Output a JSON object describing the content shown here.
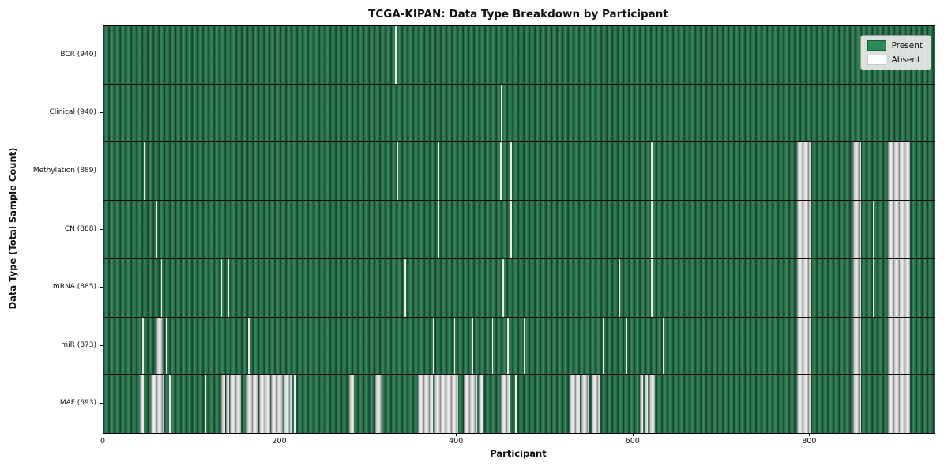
{
  "chart_data": {
    "type": "heatmap",
    "title": "TCGA-KIPAN: Data Type Breakdown by Participant",
    "xlabel": "Participant",
    "ylabel": "Data Type (Total Sample Count)",
    "x_range": [
      0,
      941
    ],
    "x_ticks": [
      0,
      200,
      400,
      600,
      800
    ],
    "grid": false,
    "legend_position": "upper right",
    "legend": [
      {
        "label": "Present",
        "color": "#2e8b57",
        "border": "#1d5c39"
      },
      {
        "label": "Absent",
        "color": "#ffffff",
        "border": "#c8c8c8"
      }
    ],
    "cell_states": {
      "present": "green striped bar",
      "absent": "white/gray striped bar"
    },
    "rows": [
      {
        "label": "BCR (940)",
        "data_type": "BCR",
        "total_samples": 940,
        "absent_ranges": [
          [
            330,
            330
          ]
        ]
      },
      {
        "label": "Clinical (940)",
        "data_type": "Clinical",
        "total_samples": 940,
        "absent_ranges": [
          [
            450,
            450
          ]
        ]
      },
      {
        "label": "Methylation (889)",
        "data_type": "Methylation",
        "total_samples": 889,
        "absent_ranges": [
          [
            46,
            46
          ],
          [
            332,
            332
          ],
          [
            379,
            379
          ],
          [
            449,
            449
          ],
          [
            461,
            461
          ],
          [
            620,
            620
          ],
          [
            785,
            800
          ],
          [
            849,
            857
          ],
          [
            888,
            912
          ]
        ]
      },
      {
        "label": "CN (888)",
        "data_type": "CN",
        "total_samples": 888,
        "absent_ranges": [
          [
            59,
            59
          ],
          [
            379,
            379
          ],
          [
            461,
            461
          ],
          [
            620,
            620
          ],
          [
            785,
            800
          ],
          [
            849,
            857
          ],
          [
            871,
            871
          ],
          [
            888,
            912
          ]
        ]
      },
      {
        "label": "mRNA (885)",
        "data_type": "mRNA",
        "total_samples": 885,
        "absent_ranges": [
          [
            65,
            65
          ],
          [
            133,
            133
          ],
          [
            141,
            141
          ],
          [
            341,
            341
          ],
          [
            452,
            452
          ],
          [
            584,
            584
          ],
          [
            620,
            620
          ],
          [
            785,
            800
          ],
          [
            849,
            857
          ],
          [
            871,
            871
          ],
          [
            888,
            912
          ]
        ]
      },
      {
        "label": "miR (873)",
        "data_type": "miR",
        "total_samples": 873,
        "absent_ranges": [
          [
            44,
            44
          ],
          [
            60,
            66
          ],
          [
            71,
            71
          ],
          [
            164,
            164
          ],
          [
            373,
            373
          ],
          [
            397,
            397
          ],
          [
            417,
            417
          ],
          [
            440,
            440
          ],
          [
            457,
            457
          ],
          [
            476,
            476
          ],
          [
            565,
            565
          ],
          [
            592,
            592
          ],
          [
            633,
            633
          ],
          [
            785,
            800
          ],
          [
            849,
            857
          ],
          [
            888,
            912
          ]
        ]
      },
      {
        "label": "MAF (693)",
        "data_type": "MAF",
        "total_samples": 693,
        "absent_ranges": [
          [
            41,
            45
          ],
          [
            54,
            68
          ],
          [
            74,
            75
          ],
          [
            115,
            115
          ],
          [
            133,
            137
          ],
          [
            139,
            141
          ],
          [
            143,
            155
          ],
          [
            162,
            173
          ],
          [
            176,
            188
          ],
          [
            190,
            202
          ],
          [
            204,
            213
          ],
          [
            216,
            217
          ],
          [
            278,
            283
          ],
          [
            308,
            314
          ],
          [
            356,
            372
          ],
          [
            375,
            401
          ],
          [
            408,
            422
          ],
          [
            425,
            429
          ],
          [
            450,
            459
          ],
          [
            466,
            467
          ],
          [
            528,
            538
          ],
          [
            541,
            549
          ],
          [
            553,
            562
          ],
          [
            607,
            610
          ],
          [
            613,
            615
          ],
          [
            618,
            623
          ],
          [
            785,
            800
          ],
          [
            849,
            857
          ],
          [
            888,
            912
          ]
        ]
      }
    ],
    "colors": {
      "present_fill": "#2f7a54",
      "present_edge": "#17452e",
      "absent_fill": "#e2e2e2",
      "absent_edge": "#8e8e8e",
      "row_separator": "#0b0b0b",
      "legend_background": "#e9ece9"
    }
  }
}
